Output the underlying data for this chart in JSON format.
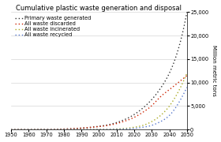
{
  "title": "Cumulative plastic waste generation and disposal",
  "ylabel": "Million metric tons",
  "xlim": [
    1950,
    2050
  ],
  "ylim": [
    0,
    25000
  ],
  "yticks": [
    0,
    5000,
    10000,
    15000,
    20000,
    25000
  ],
  "xticks": [
    1950,
    1960,
    1970,
    1980,
    1990,
    2000,
    2010,
    2020,
    2030,
    2040,
    2050
  ],
  "series": [
    {
      "label": "Primary waste generated",
      "color": "#333333",
      "lw": 1.0,
      "years": [
        1950,
        1955,
        1960,
        1965,
        1970,
        1975,
        1980,
        1985,
        1990,
        1995,
        2000,
        2005,
        2010,
        2015,
        2020,
        2025,
        2030,
        2035,
        2040,
        2045,
        2050
      ],
      "values": [
        1,
        3,
        8,
        18,
        35,
        65,
        120,
        200,
        320,
        480,
        700,
        1000,
        1500,
        2200,
        3200,
        4600,
        6400,
        8800,
        12000,
        17000,
        25000
      ]
    },
    {
      "label": "All waste discarded",
      "color": "#cc2200",
      "lw": 1.0,
      "years": [
        1950,
        1955,
        1960,
        1965,
        1970,
        1975,
        1980,
        1985,
        1990,
        1995,
        2000,
        2005,
        2010,
        2015,
        2020,
        2025,
        2030,
        2035,
        2040,
        2045,
        2050
      ],
      "values": [
        1,
        3,
        7,
        16,
        33,
        62,
        115,
        190,
        300,
        450,
        640,
        880,
        1290,
        1850,
        2600,
        3700,
        5100,
        7000,
        8500,
        10000,
        11500
      ]
    },
    {
      "label": "All waste incinerated",
      "color": "#aaaa22",
      "lw": 1.0,
      "years": [
        1950,
        1955,
        1960,
        1965,
        1970,
        1975,
        1980,
        1985,
        1990,
        1995,
        2000,
        2005,
        2010,
        2015,
        2020,
        2025,
        2030,
        2035,
        2040,
        2045,
        2050
      ],
      "values": [
        0,
        0,
        0,
        0,
        1,
        2,
        4,
        8,
        15,
        25,
        45,
        80,
        140,
        250,
        500,
        900,
        1700,
        3000,
        5000,
        8000,
        12000
      ]
    },
    {
      "label": "All waste recycled",
      "color": "#5577cc",
      "lw": 1.0,
      "years": [
        1950,
        1955,
        1960,
        1965,
        1970,
        1975,
        1980,
        1985,
        1990,
        1995,
        2000,
        2005,
        2010,
        2015,
        2020,
        2025,
        2030,
        2035,
        2040,
        2045,
        2050
      ],
      "values": [
        0,
        0,
        0,
        0,
        0,
        0,
        1,
        2,
        4,
        8,
        15,
        30,
        60,
        120,
        250,
        500,
        900,
        1700,
        3000,
        5500,
        9000
      ]
    }
  ],
  "legend_loc": "upper left",
  "bg_color": "#ffffff",
  "grid_color": "#cccccc",
  "title_fontsize": 6.0,
  "label_fontsize": 5.0,
  "tick_fontsize": 4.8,
  "legend_fontsize": 4.8
}
